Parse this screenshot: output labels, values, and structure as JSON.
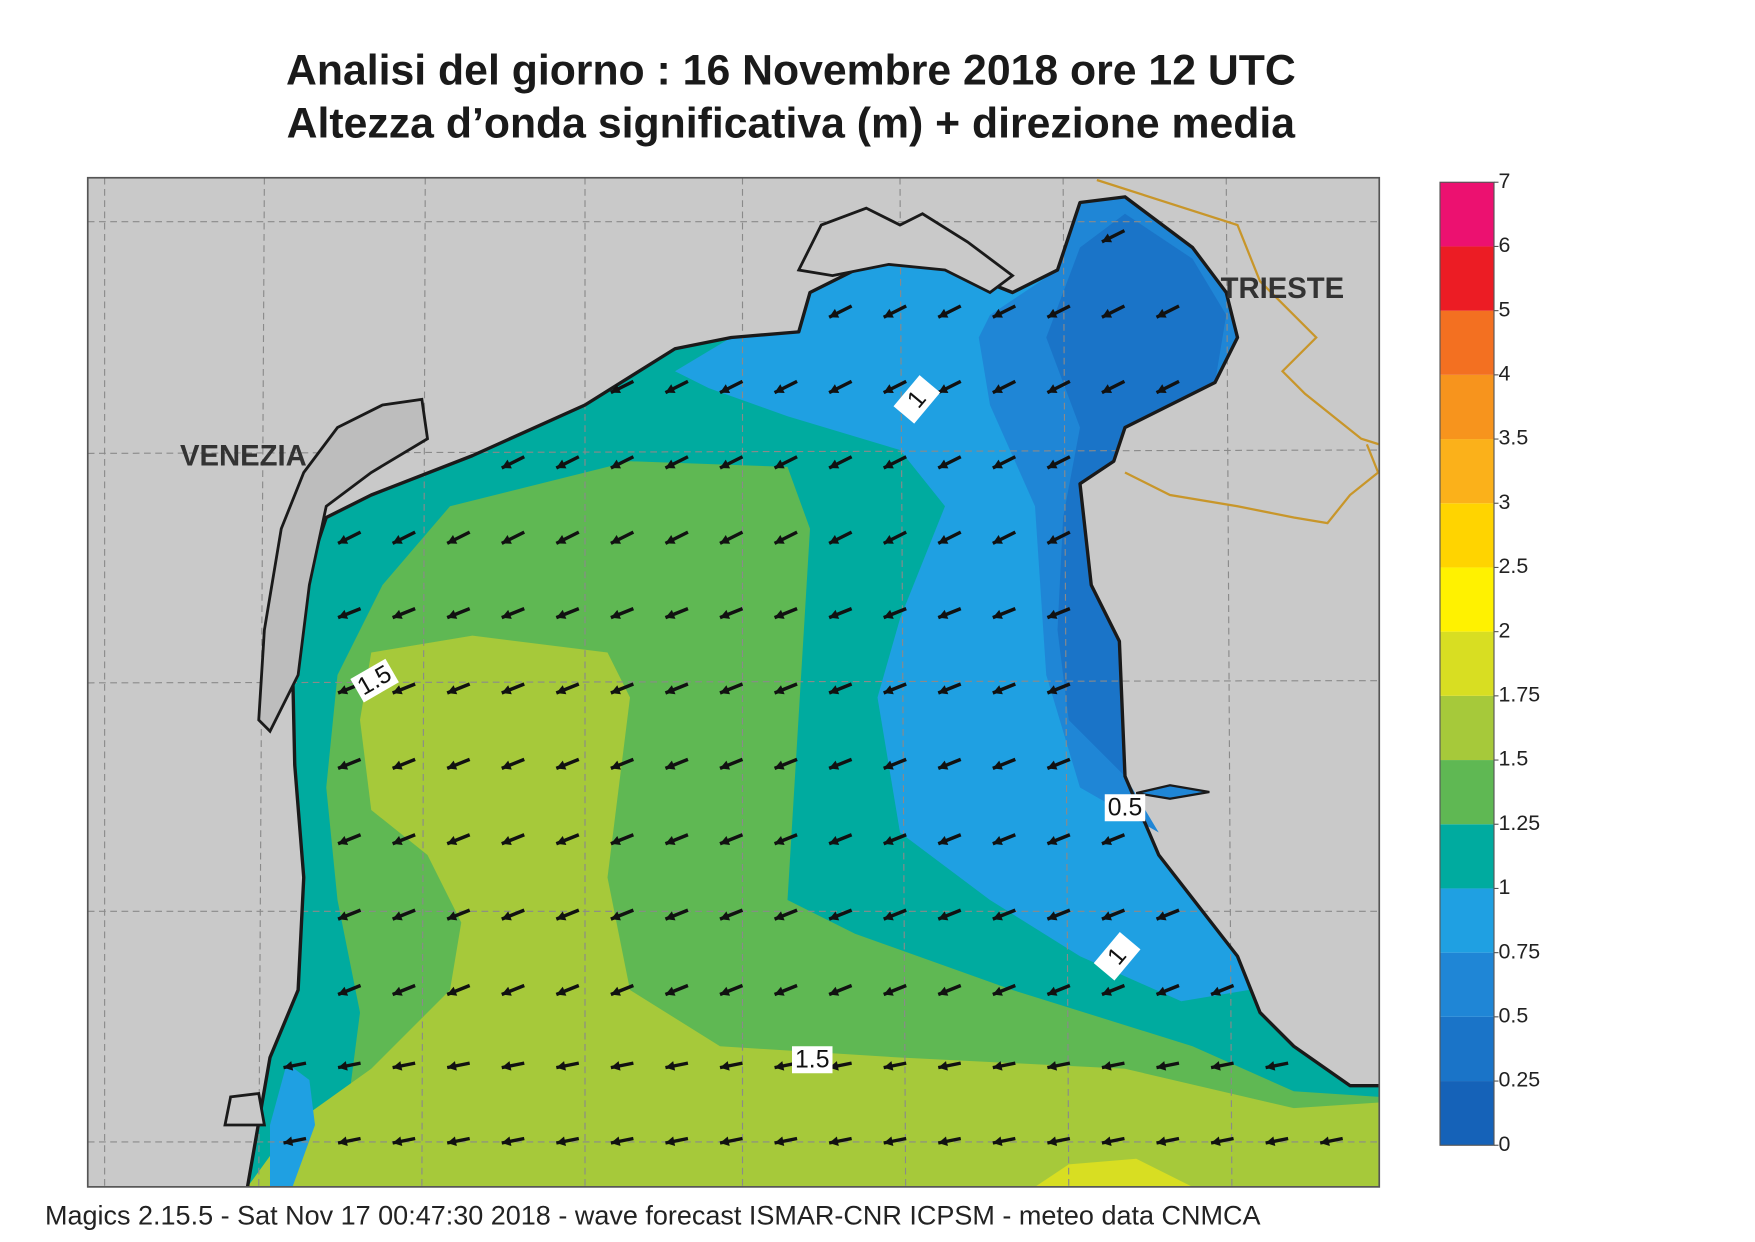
{
  "header": {
    "title_line1": "Analisi del giorno :  16 Novembre  2018   ore 12 UTC",
    "title_line2": "Altezza d’onda significativa (m) + direzione media"
  },
  "map": {
    "cities": [
      "VENEZIA",
      "TRIESTE"
    ],
    "contour_labels": [
      "1",
      "1.5",
      "0.5",
      "1",
      "1.5"
    ]
  },
  "colorbar": {
    "ticks": [
      0,
      0.25,
      0.5,
      0.75,
      1,
      1.25,
      1.5,
      1.75,
      2,
      2.5,
      3,
      3.5,
      4,
      5,
      6,
      7
    ],
    "colors": [
      "#1562b8",
      "#1a74c8",
      "#1f86d6",
      "#1fa0e2",
      "#00ab9f",
      "#5fb853",
      "#a6c93a",
      "#d8de22",
      "#fff200",
      "#ffd400",
      "#fbb11a",
      "#f7941d",
      "#f37021",
      "#ec1c24",
      "#ec1170"
    ]
  },
  "footer": "Magics 2.15.5 - Sat Nov 17 00:47:30 2018 - wave forecast  ISMAR-CNR  ICPSM - meteo data   CNMCA"
}
